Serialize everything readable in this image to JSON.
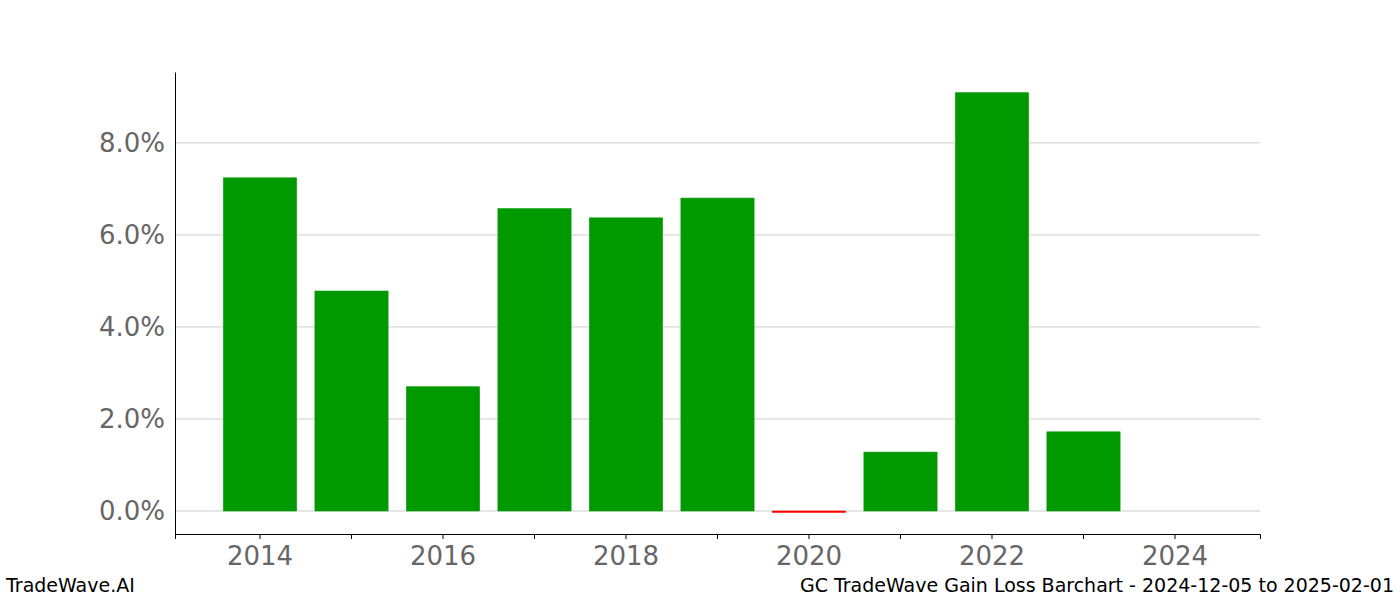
{
  "chart_data": {
    "type": "bar",
    "categories": [
      "2014",
      null,
      "2016",
      null,
      "2018",
      null,
      "2020",
      null,
      "2022",
      null,
      "2024"
    ],
    "values": [
      7.24,
      4.78,
      2.7,
      6.57,
      6.37,
      6.8,
      -0.03,
      1.28,
      9.09,
      1.72,
      0
    ],
    "colors": [
      "#009900",
      "#009900",
      "#009900",
      "#009900",
      "#009900",
      "#009900",
      "#ff0000",
      "#009900",
      "#009900",
      "#009900",
      "#009900"
    ],
    "ylim": [
      -0.5,
      9.54
    ],
    "yticks": [
      {
        "value": 0,
        "label": "0.0%"
      },
      {
        "value": 2,
        "label": "2.0%"
      },
      {
        "value": 4,
        "label": "4.0%"
      },
      {
        "value": 6,
        "label": "6.0%"
      },
      {
        "value": 8,
        "label": "8.0%"
      }
    ],
    "grid": true,
    "annotations": [
      "TradeWave.AI",
      "GC TradeWave Gain Loss Barchart - 2024-12-05 to 2025-02-01"
    ]
  }
}
